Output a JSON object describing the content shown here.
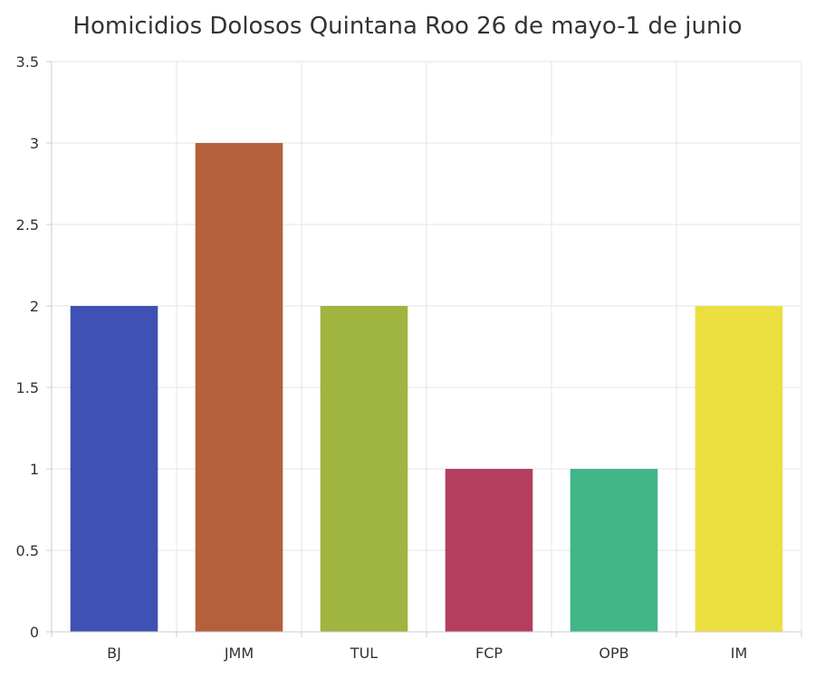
{
  "chart_data": {
    "type": "bar",
    "title": "Homicidios Dolosos Quintana Roo 26 de mayo-1 de junio",
    "xlabel": "",
    "ylabel": "",
    "categories": [
      "BJ",
      "JMM",
      "TUL",
      "FCP",
      "OPB",
      "IM"
    ],
    "values": [
      2,
      3,
      2,
      1,
      1,
      2
    ],
    "colors": [
      "#3f51b5",
      "#b5603c",
      "#a0b440",
      "#b53e5e",
      "#40b689",
      "#ebde3f"
    ],
    "ylim": [
      0,
      3.5
    ],
    "yticks": [
      0,
      0.5,
      1,
      1.5,
      2,
      2.5,
      3,
      3.5
    ],
    "ytick_labels": [
      "0",
      "0.5",
      "1",
      "1.5",
      "2",
      "2.5",
      "3",
      "3.5"
    ],
    "grid": true,
    "legend": "none"
  }
}
